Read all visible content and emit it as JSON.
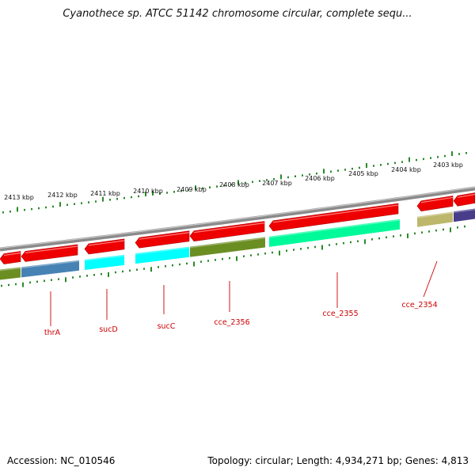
{
  "title": "Cyanothece sp. ATCC 51142 chromosome circular, complete sequ...",
  "footer": {
    "accession": "Accession: NC_010546",
    "stats": "Topology: circular; Length: 4,934,271 bp; Genes: 4,813"
  },
  "scale_labels": [
    "2413 kbp",
    "2412 kbp",
    "2411 kbp",
    "2410 kbp",
    "2409 kbp",
    "2408 kbp",
    "2407 kbp",
    "2406 kbp",
    "2405 kbp",
    "2404 kbp",
    "2403 kbp"
  ],
  "gene_labels": [
    "thrA",
    "sucD",
    "sucC",
    "cce_2356",
    "cce_2355",
    "cce_2354"
  ],
  "colors": {
    "gene_arrow": "#ee0000",
    "backbone": "#8a8a8a",
    "tick": "#2a8a2a",
    "label": "#cc0000",
    "cog_olive": "#6b8e23",
    "cog_steelblue": "#4682b4",
    "cog_cyan": "#00ffff",
    "cog_springgreen": "#00fa9a",
    "cog_khaki": "#bdb76b",
    "cog_slateblue": "#483d8b"
  }
}
